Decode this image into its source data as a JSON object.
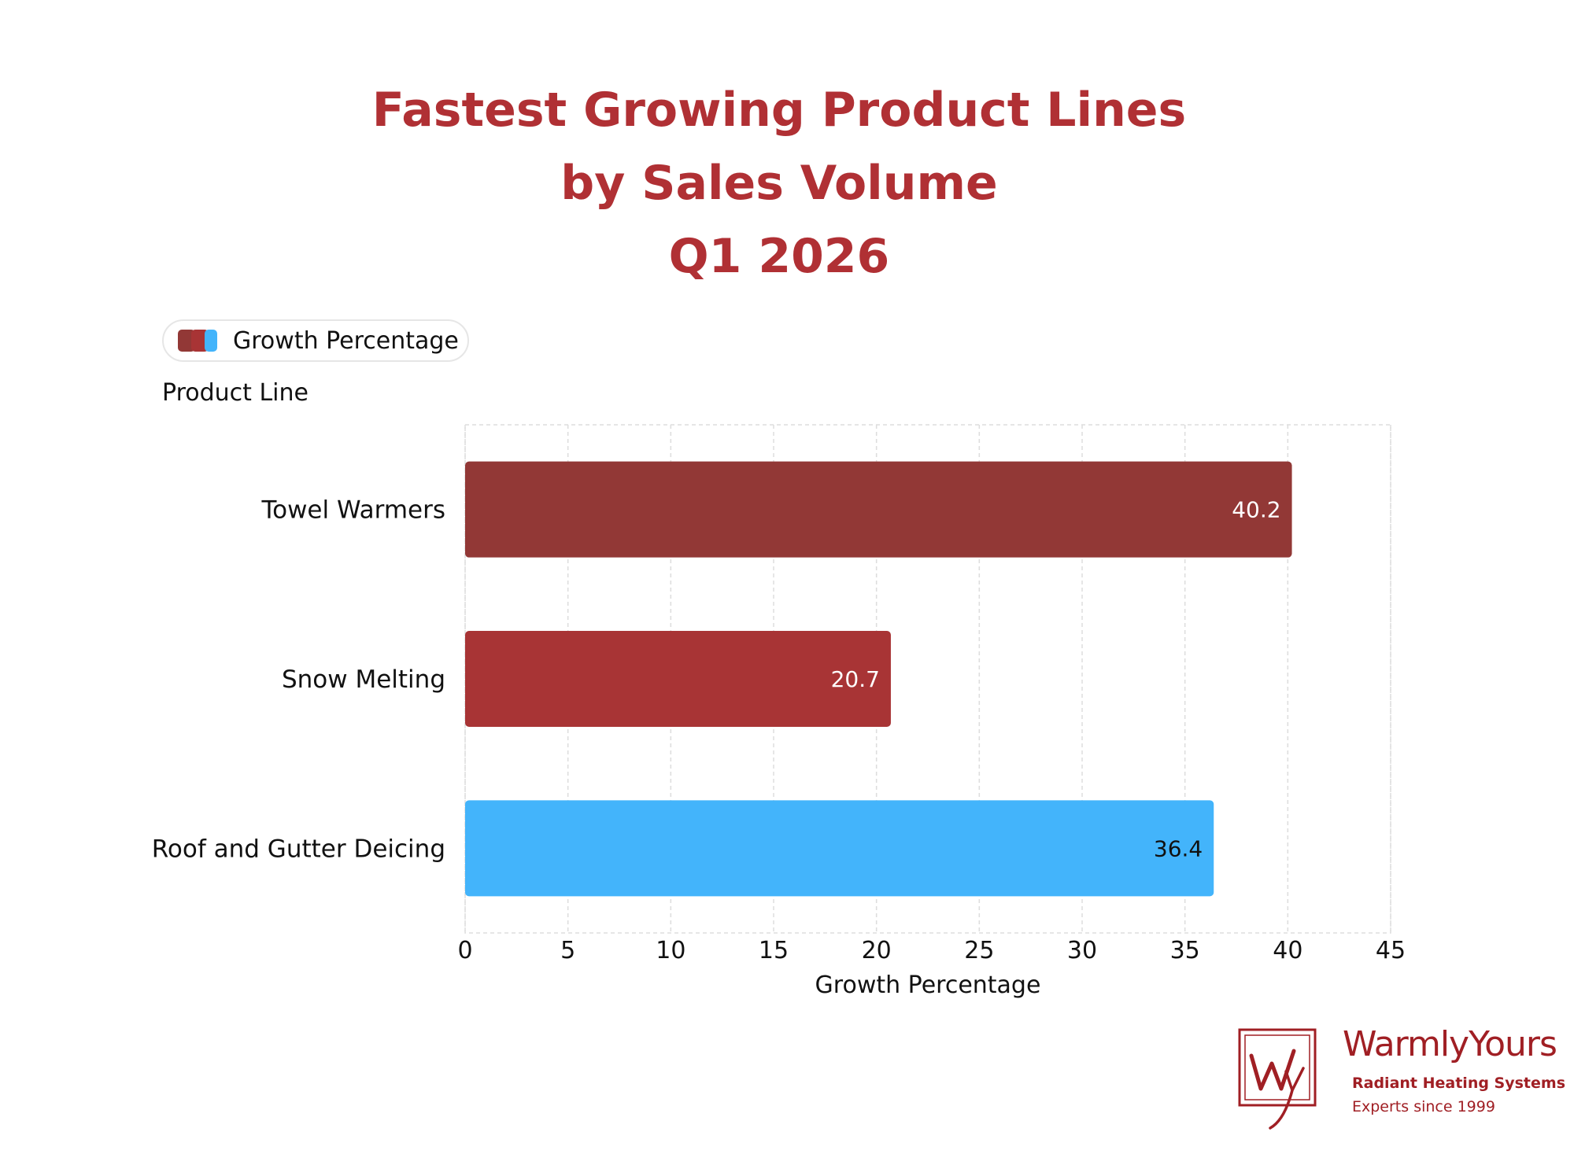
{
  "colors": {
    "title": "#b03034",
    "grid": "#dddddd",
    "text": "#111111",
    "brand": "#a01f24"
  },
  "legend": {
    "label": "Growth Percentage",
    "swatch_colors": [
      "#923836",
      "#a83435",
      "#43b4fb"
    ]
  },
  "chart_data": {
    "type": "bar",
    "orientation": "horizontal",
    "title_lines": [
      "Fastest Growing Product Lines",
      "by Sales Volume",
      "Q1 2026"
    ],
    "categories": [
      "Towel Warmers",
      "Snow Melting",
      "Roof and Gutter Deicing"
    ],
    "series": [
      {
        "name": "Growth Percentage",
        "values": [
          40.2,
          20.7,
          36.4
        ],
        "colors": [
          "#923836",
          "#a83435",
          "#43b4fb"
        ],
        "label_colors": [
          "#ffffff",
          "#ffffff",
          "#111111"
        ]
      }
    ],
    "xlabel": "Growth Percentage",
    "ylabel": "Product Line",
    "xlim": [
      0,
      45
    ],
    "xticks": [
      0,
      5,
      10,
      15,
      20,
      25,
      30,
      35,
      40,
      45
    ],
    "grid": true,
    "legend_position": "top-left"
  },
  "logo": {
    "name": "WarmlyYours",
    "subtitle": "Radiant Heating Systems",
    "tagline": "Experts since 1999",
    "monogram": "Wy"
  }
}
